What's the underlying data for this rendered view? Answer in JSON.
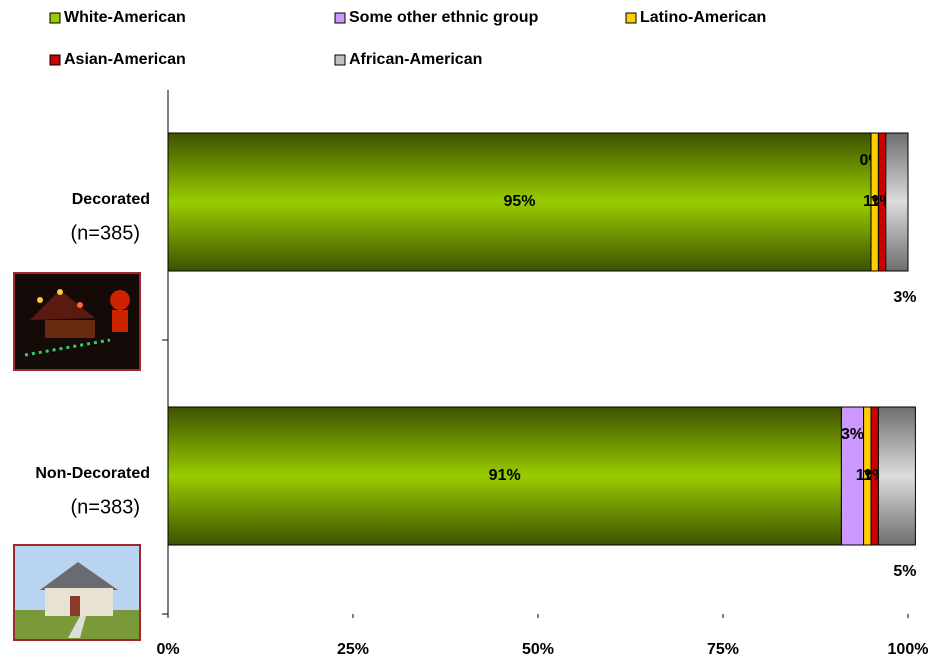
{
  "chart_data": {
    "type": "stacked-bar-horizontal",
    "categories": [
      "Decorated",
      "Non-Decorated"
    ],
    "category_sublabels": [
      "(n=385)",
      "(n=383)"
    ],
    "series": [
      {
        "name": "White-American",
        "color": "#99cc00",
        "values": [
          95,
          91
        ],
        "value_labels": [
          "95%",
          "91%"
        ]
      },
      {
        "name": "Some other ethnic group",
        "color": "#cc99ff",
        "values": [
          0,
          3
        ],
        "value_labels": [
          "0%",
          "3%"
        ]
      },
      {
        "name": "Latino-American",
        "color": "#ffcc00",
        "values": [
          1,
          1
        ],
        "value_labels": [
          "1%",
          "1%"
        ]
      },
      {
        "name": "Asian-American",
        "color": "#cc0000",
        "values": [
          1,
          1
        ],
        "value_labels": [
          "1%",
          "1%"
        ]
      },
      {
        "name": "African-American",
        "color": "#c0c0c0",
        "values": [
          3,
          5
        ],
        "value_labels": [
          "3%",
          "5%"
        ]
      }
    ],
    "xlim": [
      0,
      100
    ],
    "xticks": [
      {
        "value": 0,
        "label": "0%"
      },
      {
        "value": 25,
        "label": "25%"
      },
      {
        "value": 50,
        "label": "50%"
      },
      {
        "value": 75,
        "label": "75%"
      },
      {
        "value": 100,
        "label": "100%"
      }
    ],
    "legend": "top"
  }
}
